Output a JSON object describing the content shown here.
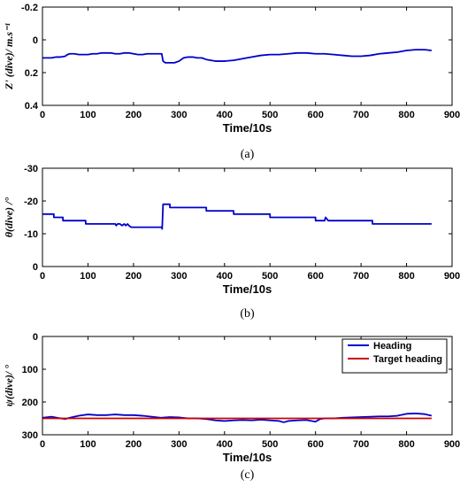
{
  "chart_data": [
    {
      "type": "line",
      "caption": "(a)",
      "xlabel": "Time/10s",
      "ylabel": "Z' (dive)/ m.s⁻¹",
      "xlim": [
        0,
        900
      ],
      "ylim": [
        -0.2,
        0.4
      ],
      "y_reversed": true,
      "x_ticks": [
        0,
        100,
        200,
        300,
        400,
        500,
        600,
        700,
        800,
        900
      ],
      "y_ticks": [
        -0.2,
        0,
        0.2,
        0.4
      ],
      "y_tick_labels": [
        "-0.2",
        "0",
        "0.2",
        "0.4"
      ],
      "series": [
        {
          "color": "#0000cc",
          "x": [
            0,
            10,
            20,
            30,
            40,
            50,
            55,
            60,
            70,
            80,
            90,
            100,
            110,
            120,
            130,
            140,
            150,
            160,
            170,
            180,
            190,
            200,
            210,
            220,
            230,
            240,
            250,
            262,
            265,
            270,
            280,
            290,
            300,
            310,
            320,
            330,
            340,
            350,
            360,
            370,
            380,
            390,
            400,
            420,
            440,
            460,
            480,
            500,
            520,
            540,
            560,
            580,
            600,
            620,
            640,
            660,
            680,
            700,
            720,
            740,
            760,
            780,
            800,
            820,
            840,
            855
          ],
          "y": [
            0.11,
            0.11,
            0.11,
            0.105,
            0.105,
            0.1,
            0.09,
            0.085,
            0.085,
            0.09,
            0.09,
            0.09,
            0.085,
            0.085,
            0.08,
            0.08,
            0.08,
            0.085,
            0.085,
            0.08,
            0.08,
            0.085,
            0.09,
            0.09,
            0.085,
            0.085,
            0.085,
            0.085,
            0.13,
            0.14,
            0.14,
            0.14,
            0.13,
            0.11,
            0.105,
            0.105,
            0.11,
            0.11,
            0.12,
            0.125,
            0.13,
            0.13,
            0.13,
            0.125,
            0.115,
            0.105,
            0.095,
            0.09,
            0.09,
            0.085,
            0.08,
            0.08,
            0.085,
            0.085,
            0.09,
            0.095,
            0.1,
            0.1,
            0.095,
            0.085,
            0.08,
            0.075,
            0.065,
            0.06,
            0.06,
            0.065
          ]
        }
      ]
    },
    {
      "type": "line",
      "caption": "(b)",
      "xlabel": "Time/10s",
      "ylabel": "θ(dive) /°",
      "xlim": [
        0,
        900
      ],
      "ylim": [
        -30,
        0
      ],
      "y_reversed": true,
      "x_ticks": [
        0,
        100,
        200,
        300,
        400,
        500,
        600,
        700,
        800,
        900
      ],
      "y_ticks": [
        -30,
        -20,
        -10,
        0
      ],
      "y_tick_labels": [
        "-30",
        "-20",
        "-10",
        "0"
      ],
      "series": [
        {
          "color": "#0000cc",
          "x": [
            0,
            25,
            25,
            45,
            45,
            95,
            95,
            160,
            162,
            165,
            170,
            175,
            180,
            183,
            187,
            190,
            195,
            262,
            263,
            265,
            280,
            280,
            360,
            360,
            420,
            420,
            500,
            500,
            600,
            600,
            620,
            622,
            625,
            628,
            632,
            725,
            725,
            855
          ],
          "y": [
            -16,
            -16,
            -15,
            -15,
            -14,
            -14,
            -13,
            -13,
            -12.5,
            -13,
            -13,
            -12.5,
            -13,
            -12.5,
            -13,
            -12.5,
            -12,
            -12,
            -11.5,
            -19,
            -19,
            -18,
            -18,
            -17,
            -17,
            -16,
            -16,
            -15,
            -15,
            -14,
            -14,
            -15,
            -14.5,
            -14,
            -14,
            -14,
            -13,
            -13
          ]
        }
      ]
    },
    {
      "type": "line",
      "caption": "(c)",
      "xlabel": "Time/10s",
      "ylabel": "ψ(dive)/ °",
      "xlim": [
        0,
        900
      ],
      "ylim": [
        0,
        300
      ],
      "y_reversed": true,
      "x_ticks": [
        0,
        100,
        200,
        300,
        400,
        500,
        600,
        700,
        800,
        900
      ],
      "y_ticks": [
        0,
        100,
        200,
        300
      ],
      "y_tick_labels": [
        "0",
        "100",
        "200",
        "300"
      ],
      "legend": "top-right",
      "series": [
        {
          "name": "Heading",
          "color": "#0000cc",
          "x": [
            0,
            20,
            40,
            50,
            60,
            80,
            100,
            120,
            140,
            160,
            180,
            200,
            220,
            240,
            260,
            280,
            300,
            320,
            340,
            360,
            380,
            400,
            420,
            440,
            460,
            480,
            500,
            520,
            530,
            540,
            560,
            580,
            600,
            610,
            620,
            640,
            660,
            680,
            700,
            720,
            740,
            760,
            780,
            800,
            820,
            840,
            855
          ],
          "y": [
            248,
            245,
            250,
            252,
            248,
            242,
            238,
            240,
            240,
            238,
            240,
            240,
            242,
            245,
            248,
            246,
            247,
            250,
            250,
            252,
            256,
            258,
            256,
            255,
            256,
            254,
            256,
            258,
            262,
            258,
            256,
            255,
            260,
            252,
            250,
            250,
            248,
            247,
            246,
            245,
            244,
            244,
            242,
            236,
            235,
            237,
            242
          ]
        },
        {
          "name": "Target heading",
          "color": "#cc0000",
          "x": [
            0,
            855
          ],
          "y": [
            250,
            250
          ]
        }
      ]
    }
  ]
}
